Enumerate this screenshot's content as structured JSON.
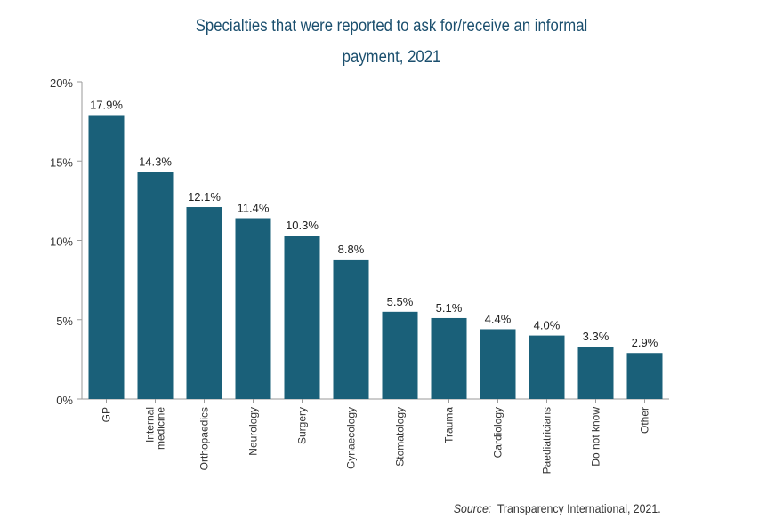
{
  "chart_data": {
    "type": "bar",
    "title": "Specialties that were reported to ask for/receive an informal payment, 2021",
    "title_lines": [
      "Specialties that were reported to ask for/receive an informal",
      "payment, 2021"
    ],
    "categories": [
      "GP",
      "Internal medicine",
      "Orthopaedics",
      "Neurology",
      "Surgery",
      "Gynaecology",
      "Stomatology",
      "Trauma",
      "Cardiology",
      "Paediatricians",
      "Do not know",
      "Other"
    ],
    "category_lines": [
      [
        "GP"
      ],
      [
        "Internal",
        "medicine"
      ],
      [
        "Orthopaedics"
      ],
      [
        "Neurology"
      ],
      [
        "Surgery"
      ],
      [
        "Gynaecology"
      ],
      [
        "Stomatology"
      ],
      [
        "Trauma"
      ],
      [
        "Cardiology"
      ],
      [
        "Paediatricians"
      ],
      [
        "Do not know"
      ],
      [
        "Other"
      ]
    ],
    "values": [
      17.9,
      14.3,
      12.1,
      11.4,
      10.3,
      8.8,
      5.5,
      5.1,
      4.4,
      4.0,
      3.3,
      2.9
    ],
    "data_labels": [
      "17.9%",
      "14.3%",
      "12.1%",
      "11.4%",
      "10.3%",
      "8.8%",
      "5.5%",
      "5.1%",
      "4.4%",
      "4.0%",
      "3.3%",
      "2.9%"
    ],
    "yticks": [
      0,
      5,
      10,
      15,
      20
    ],
    "ytick_labels": [
      "0%",
      "5%",
      "10%",
      "15%",
      "20%"
    ],
    "ylim": [
      0,
      20
    ],
    "xlabel": "",
    "ylabel": "",
    "grid": false,
    "bar_color": "#1a6079"
  },
  "source": {
    "label": "Source:",
    "text": "Transparency International, 2021."
  }
}
